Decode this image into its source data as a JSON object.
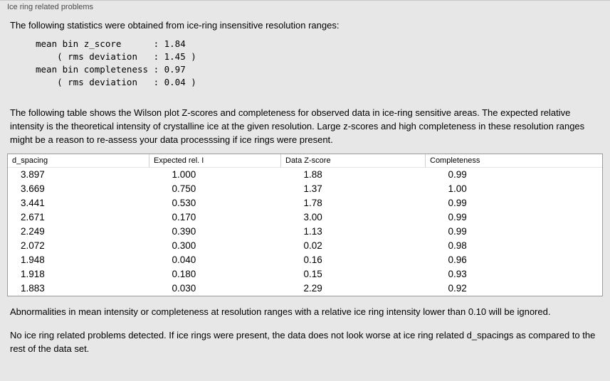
{
  "panel": {
    "title": "Ice ring related problems"
  },
  "intro": "The following statistics were obtained from ice-ring insensitive resolution ranges:",
  "stats_block": "mean bin z_score      : 1.84\n    ( rms deviation   : 1.45 )\nmean bin completeness : 0.97\n    ( rms deviation   : 0.04 )",
  "paragraph_table_description": "The following table shows the Wilson plot Z-scores and completeness for observed data in ice-ring sensitive areas. The expected relative intensity is the theoretical intensity of crystalline ice at the given resolution. Large z-scores and high completeness in these resolution ranges might be a reason to re-assess your data processsing if ice rings were present.",
  "table": {
    "headers": [
      "d_spacing",
      "Expected rel. I",
      "Data Z-score",
      "Completeness"
    ],
    "rows": [
      [
        "3.897",
        "1.000",
        "1.88",
        "0.99"
      ],
      [
        "3.669",
        "0.750",
        "1.37",
        "1.00"
      ],
      [
        "3.441",
        "0.530",
        "1.78",
        "0.99"
      ],
      [
        "2.671",
        "0.170",
        "3.00",
        "0.99"
      ],
      [
        "2.249",
        "0.390",
        "1.13",
        "0.99"
      ],
      [
        "2.072",
        "0.300",
        "0.02",
        "0.98"
      ],
      [
        "1.948",
        "0.040",
        "0.16",
        "0.96"
      ],
      [
        "1.918",
        "0.180",
        "0.15",
        "0.93"
      ],
      [
        "1.883",
        "0.030",
        "2.29",
        "0.92"
      ]
    ]
  },
  "paragraph_ignore_note": "Abnormalities in mean intensity or completeness at resolution ranges with a relative ice ring intensity lower than 0.10 will be ignored.",
  "paragraph_conclusion": "No ice ring related problems detected. If ice rings were present, the data does not look worse at ice ring related d_spacings as compared to the rest of the data set."
}
